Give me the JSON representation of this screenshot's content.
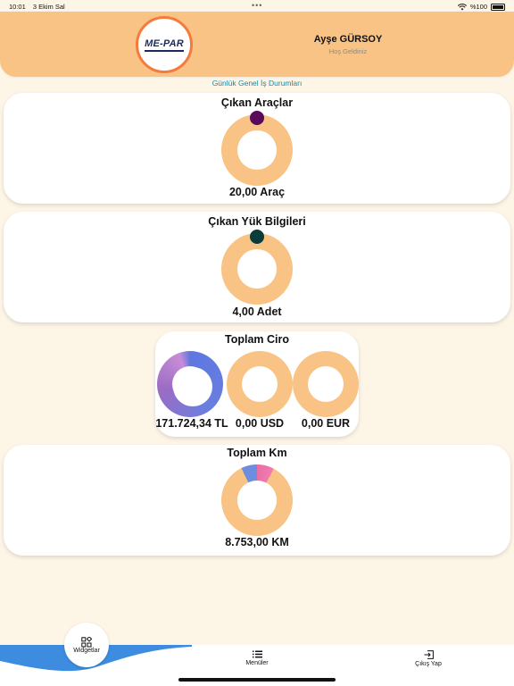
{
  "status_bar": {
    "time": "10:01",
    "date": "3 Ekim Sal",
    "battery": "%100"
  },
  "header": {
    "logo_text": "ME-PAR",
    "user_name": "Ayşe GÜRSOY",
    "greeting": "Hoş Geldiniz"
  },
  "section_title": "Günlük Genel İş Durumları",
  "cards": {
    "cikan_araclar": {
      "title": "Çıkan Araçlar",
      "value": "20,00 Araç"
    },
    "cikan_yuk": {
      "title": "Çıkan Yük Bilgileri",
      "value": "4,00 Adet"
    },
    "toplam_ciro": {
      "title": "Toplam Ciro",
      "tl": "171.724,34 TL",
      "usd": "0,00 USD",
      "eur": "0,00 EUR"
    },
    "toplam_km": {
      "title": "Toplam Km",
      "value": "8.753,00 KM"
    }
  },
  "nav": {
    "widgets": "Widgetlar",
    "menus": "Menüler",
    "logout": "Çıkış Yap"
  },
  "colors": {
    "background": "#FDF5E6",
    "header": "#F8C384",
    "donut_ring": "#F8C384",
    "accent_teal": "#1E88A8",
    "logo_border": "#F47B3C",
    "dot_purple": "#5A0A5C",
    "dot_dark_teal": "#0B3B3A",
    "nav_wave": "#3D8CE0"
  },
  "icons": {
    "wifi": "wifi-icon",
    "battery": "battery-icon",
    "widgets": "widgets-icon",
    "menu": "list-icon",
    "logout": "logout-icon"
  }
}
